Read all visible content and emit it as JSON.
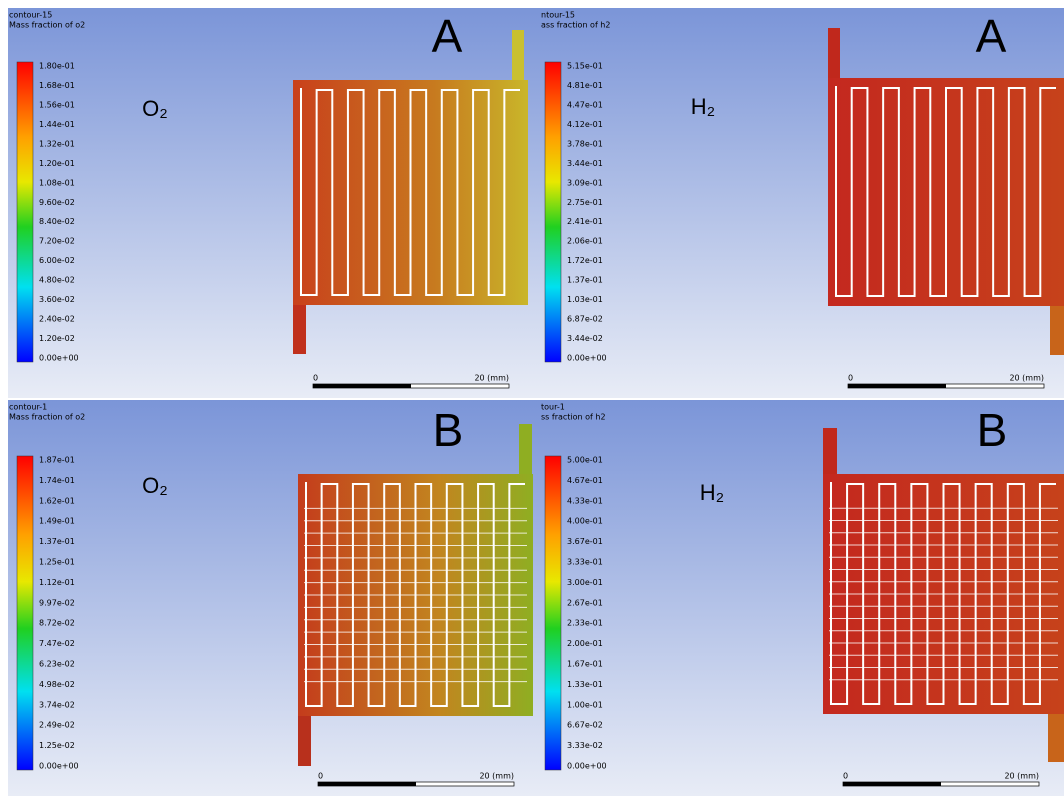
{
  "panels": [
    {
      "title": [
        "contour-15",
        "Mass fraction of o2"
      ],
      "letter": "A",
      "species": "O₂",
      "colorbar": [
        "1.80e-01",
        "1.68e-01",
        "1.56e-01",
        "1.44e-01",
        "1.32e-01",
        "1.20e-01",
        "1.08e-01",
        "9.60e-02",
        "8.40e-02",
        "7.20e-02",
        "6.00e-02",
        "4.80e-02",
        "3.60e-02",
        "2.40e-02",
        "1.20e-02",
        "0.00e+00"
      ],
      "scale": [
        "0",
        "20 (mm)"
      ]
    },
    {
      "title": [
        "ntour-15",
        "ass fraction of h2"
      ],
      "letter": "A",
      "species": "H₂",
      "colorbar": [
        "5.15e-01",
        "4.81e-01",
        "4.47e-01",
        "4.12e-01",
        "3.78e-01",
        "3.44e-01",
        "3.09e-01",
        "2.75e-01",
        "2.41e-01",
        "2.06e-01",
        "1.72e-01",
        "1.37e-01",
        "1.03e-01",
        "6.87e-02",
        "3.44e-02",
        "0.00e+00"
      ],
      "scale": [
        "0",
        "20 (mm)"
      ]
    },
    {
      "title": [
        "contour-1",
        "Mass fraction of o2"
      ],
      "letter": "B",
      "species": "O₂",
      "colorbar": [
        "1.87e-01",
        "1.74e-01",
        "1.62e-01",
        "1.49e-01",
        "1.37e-01",
        "1.25e-01",
        "1.12e-01",
        "9.97e-02",
        "8.72e-02",
        "7.47e-02",
        "6.23e-02",
        "4.98e-02",
        "3.74e-02",
        "2.49e-02",
        "1.25e-02",
        "0.00e+00"
      ],
      "scale": [
        "0",
        "20 (mm)"
      ]
    },
    {
      "title": [
        "tour-1",
        "ss fraction of h2"
      ],
      "letter": "B",
      "species": "H₂",
      "colorbar": [
        "5.00e-01",
        "4.67e-01",
        "4.33e-01",
        "4.00e-01",
        "3.67e-01",
        "3.33e-01",
        "3.00e-01",
        "2.67e-01",
        "2.33e-01",
        "2.00e-01",
        "1.67e-01",
        "1.33e-01",
        "1.00e-01",
        "6.67e-02",
        "3.33e-02",
        "0.00e+00"
      ],
      "scale": [
        "0",
        "20 (mm)"
      ]
    }
  ]
}
